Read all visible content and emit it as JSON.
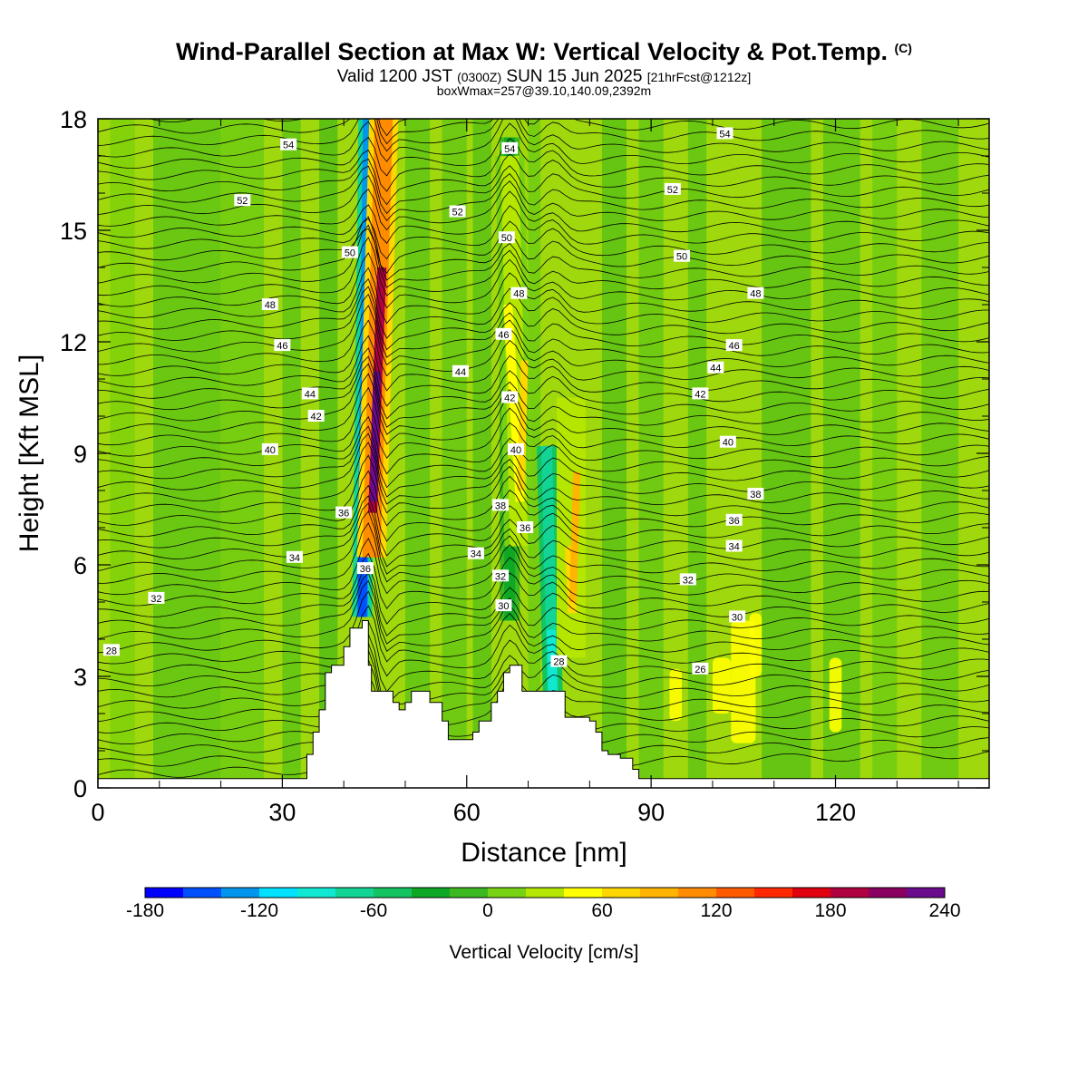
{
  "header": {
    "title": "Wind-Parallel Section at Max W: Vertical Velocity & Pot.Temp.",
    "title_mark": "(C)",
    "valid_prefix": "Valid 1200 JST",
    "valid_utc": "(0300Z)",
    "valid_date": "SUN 15 Jun 2025",
    "forecast": "[21hrFcst@1212z]",
    "box_info": "boxWmax=257@39.10,140.09,2392m"
  },
  "chart_data": {
    "type": "heatmap",
    "xlabel": "Distance [nm]",
    "ylabel": "Height [Kft MSL]",
    "xlim": [
      0,
      145
    ],
    "ylim": [
      0,
      18
    ],
    "x_ticks": [
      0,
      30,
      60,
      90,
      120
    ],
    "y_ticks": [
      0,
      3,
      6,
      9,
      12,
      15,
      18
    ],
    "terrain_height_kft": [
      [
        0,
        0.25
      ],
      [
        33,
        0.25
      ],
      [
        34,
        0.9
      ],
      [
        35,
        1.5
      ],
      [
        36,
        2.1
      ],
      [
        37,
        3.1
      ],
      [
        38,
        3.3
      ],
      [
        40,
        3.8
      ],
      [
        41,
        4.3
      ],
      [
        43,
        4.5
      ],
      [
        44,
        3.3
      ],
      [
        44.5,
        2.6
      ],
      [
        48,
        2.3
      ],
      [
        49,
        2.1
      ],
      [
        50,
        2.3
      ],
      [
        51,
        2.6
      ],
      [
        53,
        2.6
      ],
      [
        54,
        2.3
      ],
      [
        56,
        1.8
      ],
      [
        57,
        1.3
      ],
      [
        60,
        1.3
      ],
      [
        61,
        1.5
      ],
      [
        62,
        1.8
      ],
      [
        64,
        2.3
      ],
      [
        65,
        2.6
      ],
      [
        66,
        3.1
      ],
      [
        67,
        3.3
      ],
      [
        69,
        2.6
      ],
      [
        75,
        2.6
      ],
      [
        76,
        1.9
      ],
      [
        80,
        1.8
      ],
      [
        81,
        1.5
      ],
      [
        82,
        1.0
      ],
      [
        83,
        0.9
      ],
      [
        85,
        0.8
      ],
      [
        87,
        0.5
      ],
      [
        88,
        0.25
      ],
      [
        145,
        0.25
      ]
    ],
    "updraft_cores": [
      {
        "x_base": 44.5,
        "z_base": 6.2,
        "x_top": 46.5,
        "z_top": 18,
        "w_cm_s": 257
      },
      {
        "x_base": 68.5,
        "z_base": 6.5,
        "x_top": 67,
        "z_top": 17,
        "w_cm_s": 60
      },
      {
        "x_base": 77,
        "z_base": 3.5,
        "x_top": 77,
        "z_top": 10.5,
        "w_cm_s": 80
      }
    ],
    "downdraft_cores": [
      {
        "x_base": 43,
        "z_base": 4.6,
        "x_top": 44,
        "z_top": 18,
        "w_cm_s": -160
      },
      {
        "x_base": 74,
        "z_base": 2.6,
        "x_top": 73,
        "z_top": 9.2,
        "w_cm_s": -100
      },
      {
        "x_base": 67,
        "z_base": 4.5,
        "x_top": 67,
        "z_top": 17.5,
        "w_cm_s": -40
      }
    ],
    "isentrope_labels": [
      {
        "value": "54",
        "x": 31,
        "z": 17.3
      },
      {
        "value": "52",
        "x": 23.5,
        "z": 15.8
      },
      {
        "value": "50",
        "x": 41,
        "z": 14.4
      },
      {
        "value": "48",
        "x": 28,
        "z": 13.0
      },
      {
        "value": "46",
        "x": 30,
        "z": 11.9
      },
      {
        "value": "44",
        "x": 34.5,
        "z": 10.6
      },
      {
        "value": "42",
        "x": 35.5,
        "z": 10.0
      },
      {
        "value": "40",
        "x": 28,
        "z": 9.1
      },
      {
        "value": "36",
        "x": 40,
        "z": 7.4
      },
      {
        "value": "34",
        "x": 32,
        "z": 6.2
      },
      {
        "value": "36",
        "x": 43.5,
        "z": 5.9
      },
      {
        "value": "32",
        "x": 9.5,
        "z": 5.1
      },
      {
        "value": "28",
        "x": 2.2,
        "z": 3.7
      },
      {
        "value": "52",
        "x": 58.5,
        "z": 15.5
      },
      {
        "value": "54",
        "x": 67,
        "z": 17.2
      },
      {
        "value": "50",
        "x": 66.5,
        "z": 14.8
      },
      {
        "value": "48",
        "x": 68.5,
        "z": 13.3
      },
      {
        "value": "46",
        "x": 66,
        "z": 12.2
      },
      {
        "value": "44",
        "x": 59,
        "z": 11.2
      },
      {
        "value": "42",
        "x": 67,
        "z": 10.5
      },
      {
        "value": "40",
        "x": 68,
        "z": 9.1
      },
      {
        "value": "38",
        "x": 65.5,
        "z": 7.6
      },
      {
        "value": "36",
        "x": 69.5,
        "z": 7.0
      },
      {
        "value": "34",
        "x": 61.5,
        "z": 6.3
      },
      {
        "value": "32",
        "x": 65.5,
        "z": 5.7
      },
      {
        "value": "30",
        "x": 66,
        "z": 4.9
      },
      {
        "value": "28",
        "x": 75,
        "z": 3.4
      },
      {
        "value": "54",
        "x": 102,
        "z": 17.6
      },
      {
        "value": "52",
        "x": 93.5,
        "z": 16.1
      },
      {
        "value": "50",
        "x": 95,
        "z": 14.3
      },
      {
        "value": "48",
        "x": 107,
        "z": 13.3
      },
      {
        "value": "46",
        "x": 103.5,
        "z": 11.9
      },
      {
        "value": "44",
        "x": 100.5,
        "z": 11.3
      },
      {
        "value": "42",
        "x": 98,
        "z": 10.6
      },
      {
        "value": "40",
        "x": 102.5,
        "z": 9.3
      },
      {
        "value": "38",
        "x": 107,
        "z": 7.9
      },
      {
        "value": "36",
        "x": 103.5,
        "z": 7.2
      },
      {
        "value": "34",
        "x": 103.5,
        "z": 6.5
      },
      {
        "value": "32",
        "x": 96,
        "z": 5.6
      },
      {
        "value": "30",
        "x": 104,
        "z": 4.6
      },
      {
        "value": "26",
        "x": 98,
        "z": 3.2
      }
    ]
  },
  "colorbar": {
    "label": "Vertical Velocity [cm/s]",
    "tick_labels": [
      "-180",
      "-120",
      "-60",
      "0",
      "60",
      "120",
      "180",
      "240"
    ],
    "range": [
      -180,
      240
    ],
    "step": 20,
    "colors": [
      "#0000ff",
      "#0050ff",
      "#0096ee",
      "#00e0ff",
      "#10e8d2",
      "#12d494",
      "#14c460",
      "#0ea824",
      "#3cb820",
      "#78d214",
      "#b4e600",
      "#ffff00",
      "#ffd700",
      "#ffb400",
      "#ff8c00",
      "#ff5a00",
      "#ff2800",
      "#e00010",
      "#b00040",
      "#8a0060",
      "#6a0a8c"
    ]
  }
}
